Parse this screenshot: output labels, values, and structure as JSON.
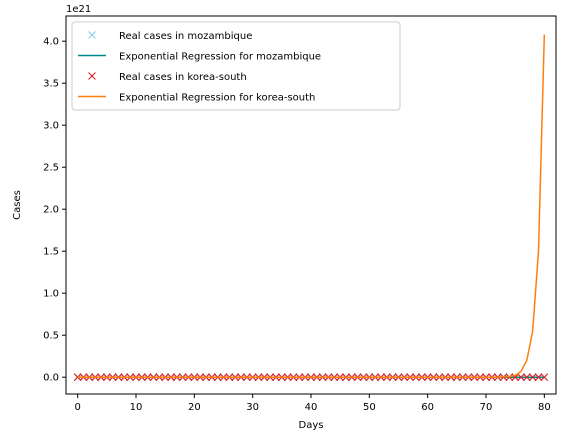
{
  "chart_data": {
    "type": "line",
    "xlabel": "Days",
    "ylabel": "Cases",
    "offset_label": "1e21",
    "xlim": [
      -2,
      82
    ],
    "ylim": [
      -0.2,
      4.3
    ],
    "xticks": [
      0,
      10,
      20,
      30,
      40,
      50,
      60,
      70,
      80
    ],
    "yticks": [
      0.0,
      0.5,
      1.0,
      1.5,
      2.0,
      2.5,
      3.0,
      3.5,
      4.0
    ],
    "ytick_labels": [
      "0.0",
      "0.5",
      "1.0",
      "1.5",
      "2.0",
      "2.5",
      "3.0",
      "3.5",
      "4.0"
    ],
    "y_unit_multiplier": 1e+21,
    "grid": false,
    "legend_position": "top-left",
    "series": [
      {
        "name": "Real cases in mozambique",
        "kind": "markers",
        "marker": "x",
        "color": "#87ceeb",
        "x_range": [
          0,
          79
        ],
        "y_value": 0
      },
      {
        "name": "Exponential Regression for mozambique",
        "kind": "line",
        "color": "#008b8b",
        "x": [
          0,
          80
        ],
        "y": [
          0,
          0
        ]
      },
      {
        "name": "Real cases in korea-south",
        "kind": "markers",
        "marker": "x",
        "color": "#d62728",
        "x_range": [
          0,
          80
        ],
        "y_value": 0
      },
      {
        "name": "Exponential Regression for korea-south",
        "kind": "line",
        "color": "#ff7f0e",
        "x": [
          0,
          70,
          72,
          74,
          75,
          76,
          77,
          78,
          79,
          80
        ],
        "y": [
          0,
          0,
          0.001,
          0.008,
          0.02,
          0.07,
          0.2,
          0.55,
          1.5,
          4.08
        ]
      }
    ]
  }
}
